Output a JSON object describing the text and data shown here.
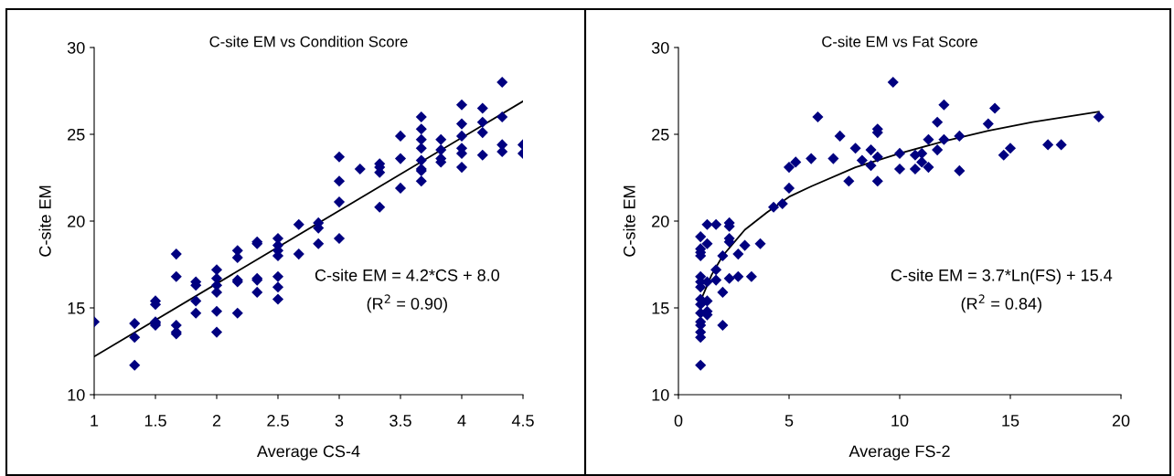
{
  "chart_data": [
    {
      "type": "scatter",
      "title": "C-site EM vs Condition Score",
      "xlabel": "Average CS-4",
      "ylabel": "C-site EM",
      "xlim": [
        1,
        4.5
      ],
      "xticks": [
        1,
        1.5,
        2,
        2.5,
        3,
        3.5,
        4,
        4.5
      ],
      "ylim": [
        10,
        30
      ],
      "yticks": [
        10,
        15,
        20,
        25,
        30
      ],
      "grid": false,
      "legend": false,
      "annotations": [
        "C-site EM = 4.2*CS + 8.0",
        "(R$^{2}$ = 0.90)"
      ],
      "series": [
        {
          "color": "#000080",
          "marker": "diamond",
          "x": [
            1,
            1.33,
            1.33,
            1.33,
            1.5,
            1.5,
            1.5,
            1.5,
            1.5,
            1.67,
            1.67,
            1.67,
            1.67,
            1.67,
            1.83,
            1.83,
            1.83,
            1.83,
            2,
            2,
            2,
            2,
            2,
            2,
            2.17,
            2.17,
            2.17,
            2.17,
            2.17,
            2.33,
            2.33,
            2.33,
            2.33,
            2.33,
            2.5,
            2.5,
            2.5,
            2.5,
            2.5,
            2.5,
            2.5,
            2.67,
            2.67,
            2.83,
            2.83,
            2.83,
            3,
            3,
            3,
            3,
            3.17,
            3.33,
            3.33,
            3.33,
            3.33,
            3.5,
            3.5,
            3.5,
            3.67,
            3.67,
            3.67,
            3.67,
            3.67,
            3.67,
            3.67,
            3.67,
            3.83,
            3.83,
            3.83,
            3.83,
            4,
            4,
            4,
            4,
            4,
            4,
            4.17,
            4.17,
            4.17,
            4.17,
            4.33,
            4.33,
            4.33,
            4.33,
            4.5,
            4.5
          ],
          "values": [
            14.2,
            14.1,
            13.3,
            11.7,
            15.4,
            15.2,
            14.2,
            14.0,
            14.1,
            18.1,
            16.8,
            14.0,
            13.5,
            13.6,
            16.5,
            16.3,
            15.4,
            14.7,
            17.2,
            16.7,
            16.3,
            15.9,
            14.8,
            13.6,
            18.3,
            17.9,
            16.6,
            16.5,
            14.7,
            18.7,
            18.8,
            16.7,
            16.6,
            15.9,
            19.0,
            18.6,
            18.3,
            18.0,
            16.8,
            16.2,
            15.5,
            19.8,
            18.1,
            19.9,
            19.6,
            18.7,
            23.7,
            22.3,
            21.1,
            19.0,
            23.0,
            23.3,
            23.1,
            22.8,
            20.8,
            24.9,
            23.6,
            21.9,
            26.0,
            25.3,
            24.7,
            24.2,
            23.5,
            23.0,
            22.9,
            22.3,
            24.7,
            24.1,
            23.6,
            23.4,
            26.7,
            25.6,
            24.9,
            24.2,
            23.9,
            23.1,
            26.5,
            25.7,
            25.1,
            23.8,
            28.0,
            26.0,
            24.4,
            24.0,
            24.4,
            23.9
          ]
        },
        {
          "type": "line",
          "color": "#000000",
          "marker": "none",
          "line_style": "solid",
          "x": [
            1,
            4.5
          ],
          "values": [
            12.2,
            26.9
          ]
        }
      ]
    },
    {
      "type": "scatter",
      "title": "C-site EM vs Fat Score",
      "xlabel": "Average FS-2",
      "ylabel": "C-site EM",
      "xlim": [
        0,
        20
      ],
      "xticks": [
        0,
        5,
        10,
        15,
        20
      ],
      "ylim": [
        10,
        30
      ],
      "yticks": [
        10,
        15,
        20,
        25,
        30
      ],
      "grid": false,
      "legend": false,
      "annotations": [
        "C-site EM = 3.7*Ln(FS) + 15.4",
        "(R$^{2}$ = 0.84)"
      ],
      "series": [
        {
          "color": "#000080",
          "marker": "diamond",
          "x": [
            1,
            1,
            1,
            1,
            1,
            1,
            1,
            1,
            1,
            1,
            1,
            1,
            1,
            1,
            1,
            1.3,
            1.3,
            1.3,
            1.3,
            1.3,
            1.3,
            1.7,
            1.7,
            1.7,
            2,
            2,
            2,
            2.3,
            2.3,
            2.3,
            2.3,
            2.3,
            2.7,
            2.7,
            3,
            3.3,
            3.7,
            4.3,
            4.7,
            5,
            5,
            5.3,
            6,
            6.3,
            7,
            7.3,
            7.7,
            8,
            8.3,
            8.7,
            8.7,
            9,
            9,
            9,
            9,
            9.7,
            10,
            10,
            10.7,
            10.7,
            11,
            11,
            11.3,
            11.3,
            11.7,
            11.7,
            12,
            12,
            12.7,
            12.7,
            14,
            14.3,
            14.7,
            15,
            16.7,
            17.3,
            19
          ],
          "values": [
            19.1,
            18.4,
            18.2,
            18.0,
            16.8,
            16.5,
            16.2,
            15.5,
            15.2,
            14.7,
            14.2,
            14.0,
            13.6,
            13.3,
            11.7,
            19.8,
            18.7,
            16.5,
            15.4,
            14.8,
            14.6,
            19.8,
            17.2,
            16.6,
            18.0,
            15.9,
            14.0,
            19.9,
            19.7,
            19.0,
            18.8,
            16.7,
            18.1,
            16.8,
            18.6,
            16.8,
            18.7,
            20.8,
            21.0,
            23.1,
            21.9,
            23.4,
            23.6,
            26.0,
            23.6,
            24.9,
            22.3,
            24.2,
            23.5,
            24.1,
            23.2,
            25.3,
            25.1,
            23.7,
            22.3,
            28.0,
            23.9,
            23.0,
            23.8,
            23.0,
            23.9,
            23.4,
            24.7,
            23.1,
            25.7,
            24.1,
            26.7,
            24.7,
            24.9,
            22.9,
            25.6,
            26.5,
            23.8,
            24.2,
            24.4,
            24.4,
            26.0
          ]
        },
        {
          "type": "line",
          "color": "#000000",
          "marker": "none",
          "line_style": "solid",
          "x": [
            1,
            1.5,
            2,
            3,
            4,
            5,
            6,
            8,
            10,
            12,
            14,
            16,
            19
          ],
          "values": [
            15.4,
            16.9,
            18.0,
            19.5,
            20.5,
            21.4,
            22.0,
            23.1,
            23.9,
            24.6,
            25.2,
            25.7,
            26.3
          ]
        }
      ]
    }
  ]
}
